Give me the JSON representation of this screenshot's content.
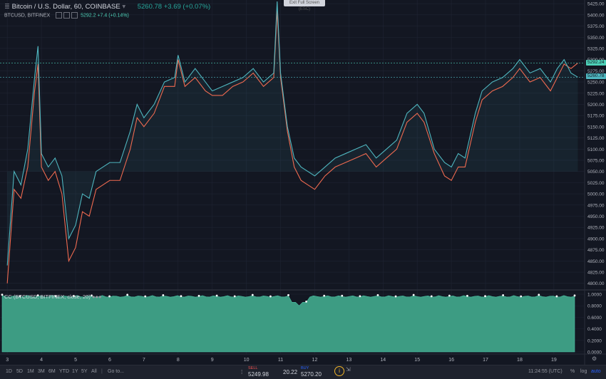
{
  "header": {
    "symbol_label": "Bitcoin / U.S. Dollar, 60, COINBASE",
    "dropdown_glyph": "▾",
    "last_price": "5260.78",
    "change": "+3.69 (+0.07%)",
    "overlay_symbol": "BTCUSD, BITFINEX",
    "overlay_price": "5292.2",
    "overlay_change": "+7.4 (+0.14%)"
  },
  "tooltip": "Exit Full Screen (ESC)",
  "price_axis": {
    "labels": [
      "5425.00",
      "5400.00",
      "5375.00",
      "5350.00",
      "5325.00",
      "5300.00",
      "5275.00",
      "5250.00",
      "5225.00",
      "5200.00",
      "5175.00",
      "5150.00",
      "5125.00",
      "5100.00",
      "5075.00",
      "5050.00",
      "5025.00",
      "5000.00",
      "4975.00",
      "4950.00",
      "4925.00",
      "4900.00",
      "4875.00",
      "4850.00",
      "4825.00",
      "4800.00"
    ],
    "tag_overlay": "5292.24",
    "tag_last": "5260.78"
  },
  "indicator": {
    "label": "CC (BTCUSD, BITFINEX, close, 20)",
    "axis_labels": [
      "1.0000",
      "0.8000",
      "0.6000",
      "0.4000",
      "0.2000",
      "0.0000"
    ]
  },
  "time_axis": {
    "labels": [
      "3",
      "4",
      "5",
      "6",
      "7",
      "8",
      "9",
      "10",
      "11",
      "12",
      "13",
      "14",
      "15",
      "16",
      "17",
      "18",
      "19"
    ]
  },
  "bottom": {
    "ranges": [
      "1D",
      "5D",
      "1M",
      "3M",
      "6M",
      "YTD",
      "1Y",
      "5Y",
      "All"
    ],
    "goto": "Go to...",
    "sell_label": "SELL",
    "sell_price": "5249.98",
    "spread": "20.22",
    "buy_label": "BUY",
    "buy_price": "5270.20",
    "clock": "11:24:55 (UTC)",
    "percent": "%",
    "log": "log",
    "auto": "auto"
  },
  "colors": {
    "background": "#131722",
    "primary_line": "#4fb6bf",
    "overlay_line": "#ef6a50",
    "indicator_fill": "#3d9c83",
    "grid": "#1f2433"
  },
  "chart_data": {
    "type": "line",
    "title": "Bitcoin / U.S. Dollar, 60, COINBASE",
    "x_labels": [
      "3",
      "4",
      "5",
      "6",
      "7",
      "8",
      "9",
      "10",
      "11",
      "12",
      "13",
      "14",
      "15",
      "16",
      "17",
      "18",
      "19"
    ],
    "ylim": [
      4790,
      5430
    ],
    "series": [
      {
        "name": "Bitcoin / U.S. Dollar, 60, COINBASE",
        "x": [
          3,
          3.2,
          3.4,
          3.6,
          3.8,
          3.9,
          4.0,
          4.2,
          4.4,
          4.6,
          4.8,
          5.0,
          5.2,
          5.4,
          5.6,
          5.8,
          6.0,
          6.3,
          6.6,
          6.8,
          7.0,
          7.3,
          7.6,
          7.9,
          8.0,
          8.2,
          8.5,
          8.8,
          9.0,
          9.3,
          9.6,
          9.9,
          10.2,
          10.5,
          10.8,
          10.9,
          11.0,
          11.2,
          11.4,
          11.6,
          11.8,
          12.0,
          12.3,
          12.6,
          12.9,
          13.2,
          13.5,
          13.8,
          14.1,
          14.4,
          14.7,
          15.0,
          15.2,
          15.5,
          15.8,
          16.0,
          16.2,
          16.4,
          16.7,
          16.9,
          17.2,
          17.5,
          17.8,
          18.0,
          18.3,
          18.6,
          18.9,
          19.1,
          19.3,
          19.5,
          19.7
        ],
        "y": [
          4840,
          5050,
          5020,
          5100,
          5260,
          5330,
          5090,
          5060,
          5080,
          5040,
          4900,
          4930,
          5000,
          4990,
          5050,
          5060,
          5070,
          5070,
          5140,
          5200,
          5170,
          5200,
          5250,
          5260,
          5310,
          5250,
          5280,
          5250,
          5230,
          5240,
          5250,
          5260,
          5280,
          5250,
          5270,
          5430,
          5270,
          5150,
          5080,
          5060,
          5050,
          5040,
          5060,
          5080,
          5090,
          5100,
          5110,
          5080,
          5100,
          5120,
          5180,
          5200,
          5180,
          5100,
          5070,
          5060,
          5090,
          5080,
          5180,
          5230,
          5250,
          5260,
          5280,
          5300,
          5270,
          5280,
          5250,
          5280,
          5300,
          5270,
          5260.78
        ]
      },
      {
        "name": "BTCUSD, BITFINEX",
        "x": [
          3,
          3.2,
          3.4,
          3.6,
          3.8,
          3.9,
          4.0,
          4.2,
          4.4,
          4.6,
          4.8,
          5.0,
          5.2,
          5.4,
          5.6,
          5.8,
          6.0,
          6.3,
          6.6,
          6.8,
          7.0,
          7.3,
          7.6,
          7.9,
          8.0,
          8.2,
          8.5,
          8.8,
          9.0,
          9.3,
          9.6,
          9.9,
          10.2,
          10.5,
          10.8,
          10.9,
          11.0,
          11.2,
          11.4,
          11.6,
          11.8,
          12.0,
          12.3,
          12.6,
          12.9,
          13.2,
          13.5,
          13.8,
          14.1,
          14.4,
          14.7,
          15.0,
          15.2,
          15.5,
          15.8,
          16.0,
          16.2,
          16.4,
          16.7,
          16.9,
          17.2,
          17.5,
          17.8,
          18.0,
          18.3,
          18.6,
          18.9,
          19.1,
          19.3,
          19.5,
          19.7
        ],
        "y": [
          4800,
          5010,
          4990,
          5060,
          5230,
          5290,
          5060,
          5030,
          5050,
          5000,
          4850,
          4880,
          4960,
          4950,
          5010,
          5020,
          5030,
          5030,
          5100,
          5170,
          5150,
          5180,
          5240,
          5240,
          5300,
          5240,
          5260,
          5230,
          5220,
          5220,
          5240,
          5250,
          5270,
          5240,
          5260,
          5410,
          5260,
          5140,
          5060,
          5030,
          5020,
          5010,
          5040,
          5060,
          5070,
          5080,
          5090,
          5060,
          5080,
          5100,
          5160,
          5180,
          5160,
          5090,
          5040,
          5030,
          5060,
          5060,
          5160,
          5210,
          5230,
          5240,
          5260,
          5280,
          5250,
          5260,
          5230,
          5260,
          5290,
          5280,
          5292.24
        ]
      }
    ]
  }
}
